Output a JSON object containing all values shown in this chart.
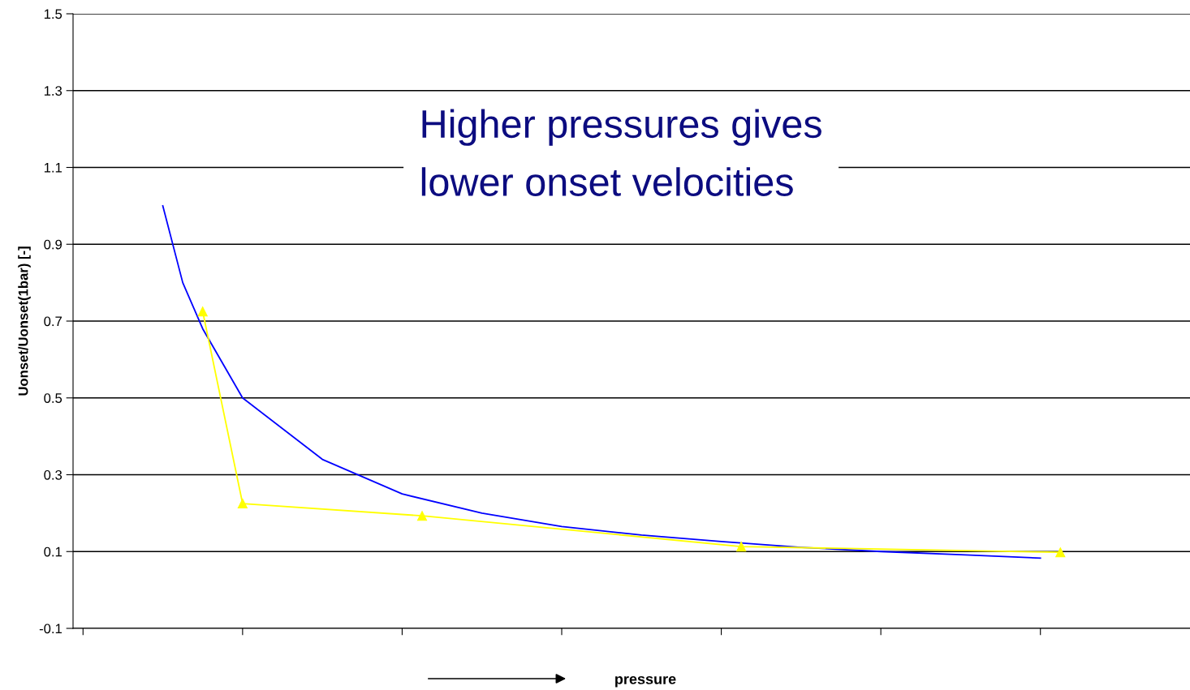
{
  "chart_data": {
    "type": "line",
    "xlabel": "pressure",
    "ylabel": "Uonset/Uonset(1bar) [-]",
    "annotations": [
      "Higher pressures gives\nlower onset velocities"
    ],
    "categories": [
      null,
      null,
      null,
      null,
      null,
      null,
      null,
      null,
      null,
      null,
      null,
      null,
      null,
      null,
      null,
      null,
      null,
      null,
      null,
      null,
      null,
      null,
      null,
      null,
      null,
      null,
      null,
      null,
      null,
      null,
      null,
      null,
      null,
      null,
      null,
      null,
      null,
      null,
      null,
      null,
      null,
      null,
      null,
      null,
      null,
      null,
      null,
      null,
      null,
      null,
      null,
      null,
      null,
      null,
      null,
      null
    ],
    "ylim": [
      -0.1,
      1.5
    ],
    "yticks": [
      -0.1,
      0.1,
      0.3,
      0.5,
      0.7,
      0.9,
      1.1,
      1.3,
      1.5
    ],
    "grid": "y",
    "series": [
      {
        "color": "#0000ff",
        "marker": "none",
        "values": [
          null,
          null,
          null,
          null,
          1.0,
          0.8,
          0.68,
          null,
          0.5,
          null,
          null,
          null,
          0.34,
          null,
          null,
          null,
          0.25,
          null,
          null,
          null,
          0.2,
          null,
          null,
          null,
          0.165,
          null,
          null,
          null,
          0.143,
          null,
          null,
          null,
          0.126,
          null,
          null,
          null,
          0.111,
          null,
          null,
          null,
          0.1,
          null,
          null,
          null,
          0.092,
          null,
          null,
          null,
          0.083,
          null,
          null,
          null,
          null,
          null,
          null,
          null
        ]
      },
      {
        "color": "#ffff00",
        "marker": "triangle",
        "values": [
          null,
          null,
          null,
          null,
          null,
          null,
          0.725,
          null,
          0.225,
          null,
          null,
          null,
          null,
          null,
          null,
          null,
          null,
          0.193,
          null,
          null,
          null,
          null,
          null,
          null,
          null,
          null,
          null,
          null,
          null,
          null,
          null,
          null,
          null,
          0.113,
          null,
          null,
          null,
          null,
          null,
          null,
          null,
          null,
          null,
          null,
          null,
          null,
          null,
          null,
          null,
          0.098,
          null,
          null,
          null,
          null,
          null,
          null
        ]
      }
    ]
  }
}
